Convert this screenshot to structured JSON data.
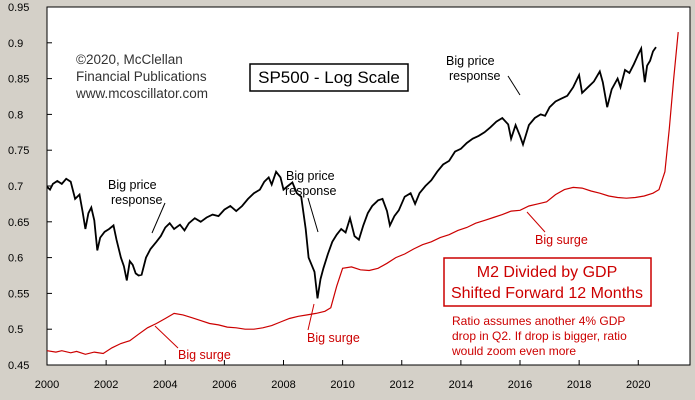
{
  "chart_data": {
    "type": "line",
    "title": "SP500 - Log Scale",
    "copyright": [
      "©2020, McClellan",
      "Financial Publications",
      "www.mcoscillator.com"
    ],
    "xlim": [
      2000,
      2021.75
    ],
    "ylim": [
      0.45,
      0.95
    ],
    "x_ticks": [
      2000,
      2002,
      2004,
      2006,
      2008,
      2010,
      2012,
      2014,
      2016,
      2018,
      2020
    ],
    "y_ticks": [
      "0.45",
      "0.5",
      "0.55",
      "0.6",
      "0.65",
      "0.7",
      "0.75",
      "0.8",
      "0.85",
      "0.9",
      "0.95"
    ],
    "grid": false,
    "series": [
      {
        "name": "SP500",
        "color": "#000000",
        "points": [
          [
            2000.0,
            0.699
          ],
          [
            2000.1,
            0.695
          ],
          [
            2000.2,
            0.703
          ],
          [
            2000.35,
            0.707
          ],
          [
            2000.5,
            0.703
          ],
          [
            2000.65,
            0.71
          ],
          [
            2000.8,
            0.706
          ],
          [
            2000.95,
            0.682
          ],
          [
            2001.1,
            0.688
          ],
          [
            2001.2,
            0.665
          ],
          [
            2001.3,
            0.64
          ],
          [
            2001.4,
            0.662
          ],
          [
            2001.5,
            0.67
          ],
          [
            2001.6,
            0.652
          ],
          [
            2001.7,
            0.61
          ],
          [
            2001.8,
            0.628
          ],
          [
            2001.95,
            0.636
          ],
          [
            2002.1,
            0.64
          ],
          [
            2002.25,
            0.645
          ],
          [
            2002.35,
            0.625
          ],
          [
            2002.5,
            0.6
          ],
          [
            2002.6,
            0.588
          ],
          [
            2002.7,
            0.568
          ],
          [
            2002.8,
            0.595
          ],
          [
            2002.9,
            0.59
          ],
          [
            2003.0,
            0.578
          ],
          [
            2003.1,
            0.575
          ],
          [
            2003.2,
            0.576
          ],
          [
            2003.35,
            0.6
          ],
          [
            2003.5,
            0.612
          ],
          [
            2003.7,
            0.622
          ],
          [
            2003.85,
            0.63
          ],
          [
            2004.0,
            0.642
          ],
          [
            2004.15,
            0.648
          ],
          [
            2004.3,
            0.64
          ],
          [
            2004.5,
            0.646
          ],
          [
            2004.65,
            0.638
          ],
          [
            2004.8,
            0.648
          ],
          [
            2005.0,
            0.655
          ],
          [
            2005.2,
            0.65
          ],
          [
            2005.4,
            0.656
          ],
          [
            2005.6,
            0.66
          ],
          [
            2005.8,
            0.658
          ],
          [
            2006.0,
            0.667
          ],
          [
            2006.2,
            0.672
          ],
          [
            2006.4,
            0.665
          ],
          [
            2006.6,
            0.672
          ],
          [
            2006.8,
            0.682
          ],
          [
            2007.0,
            0.69
          ],
          [
            2007.2,
            0.695
          ],
          [
            2007.35,
            0.706
          ],
          [
            2007.5,
            0.712
          ],
          [
            2007.6,
            0.702
          ],
          [
            2007.75,
            0.72
          ],
          [
            2007.9,
            0.712
          ],
          [
            2008.0,
            0.695
          ],
          [
            2008.15,
            0.7
          ],
          [
            2008.3,
            0.705
          ],
          [
            2008.45,
            0.69
          ],
          [
            2008.6,
            0.685
          ],
          [
            2008.75,
            0.64
          ],
          [
            2008.85,
            0.6
          ],
          [
            2008.95,
            0.59
          ],
          [
            2009.05,
            0.58
          ],
          [
            2009.15,
            0.543
          ],
          [
            2009.25,
            0.57
          ],
          [
            2009.35,
            0.585
          ],
          [
            2009.5,
            0.605
          ],
          [
            2009.65,
            0.622
          ],
          [
            2009.8,
            0.632
          ],
          [
            2009.95,
            0.64
          ],
          [
            2010.1,
            0.635
          ],
          [
            2010.25,
            0.655
          ],
          [
            2010.4,
            0.63
          ],
          [
            2010.55,
            0.625
          ],
          [
            2010.7,
            0.645
          ],
          [
            2010.85,
            0.662
          ],
          [
            2011.0,
            0.672
          ],
          [
            2011.2,
            0.68
          ],
          [
            2011.35,
            0.682
          ],
          [
            2011.5,
            0.665
          ],
          [
            2011.6,
            0.645
          ],
          [
            2011.75,
            0.658
          ],
          [
            2011.9,
            0.666
          ],
          [
            2012.1,
            0.685
          ],
          [
            2012.3,
            0.69
          ],
          [
            2012.45,
            0.675
          ],
          [
            2012.6,
            0.69
          ],
          [
            2012.8,
            0.7
          ],
          [
            2013.0,
            0.708
          ],
          [
            2013.2,
            0.72
          ],
          [
            2013.4,
            0.73
          ],
          [
            2013.6,
            0.735
          ],
          [
            2013.8,
            0.748
          ],
          [
            2014.0,
            0.752
          ],
          [
            2014.2,
            0.76
          ],
          [
            2014.4,
            0.766
          ],
          [
            2014.6,
            0.77
          ],
          [
            2014.8,
            0.775
          ],
          [
            2015.0,
            0.782
          ],
          [
            2015.2,
            0.79
          ],
          [
            2015.4,
            0.795
          ],
          [
            2015.6,
            0.786
          ],
          [
            2015.7,
            0.766
          ],
          [
            2015.85,
            0.785
          ],
          [
            2016.0,
            0.77
          ],
          [
            2016.1,
            0.758
          ],
          [
            2016.3,
            0.785
          ],
          [
            2016.5,
            0.795
          ],
          [
            2016.7,
            0.8
          ],
          [
            2016.85,
            0.798
          ],
          [
            2017.0,
            0.81
          ],
          [
            2017.2,
            0.818
          ],
          [
            2017.4,
            0.822
          ],
          [
            2017.6,
            0.826
          ],
          [
            2017.8,
            0.838
          ],
          [
            2018.0,
            0.855
          ],
          [
            2018.1,
            0.83
          ],
          [
            2018.3,
            0.838
          ],
          [
            2018.5,
            0.846
          ],
          [
            2018.7,
            0.86
          ],
          [
            2018.8,
            0.845
          ],
          [
            2018.95,
            0.81
          ],
          [
            2019.1,
            0.835
          ],
          [
            2019.3,
            0.85
          ],
          [
            2019.4,
            0.838
          ],
          [
            2019.55,
            0.862
          ],
          [
            2019.7,
            0.858
          ],
          [
            2019.85,
            0.87
          ],
          [
            2020.0,
            0.884
          ],
          [
            2020.1,
            0.892
          ],
          [
            2020.15,
            0.87
          ],
          [
            2020.22,
            0.845
          ],
          [
            2020.3,
            0.868
          ],
          [
            2020.4,
            0.875
          ],
          [
            2020.5,
            0.888
          ],
          [
            2020.6,
            0.894
          ]
        ]
      },
      {
        "name": "M2 Divided by GDP Shifted Forward 12 Months",
        "color": "#cc0000",
        "points": [
          [
            2000.0,
            0.47
          ],
          [
            2000.3,
            0.468
          ],
          [
            2000.5,
            0.47
          ],
          [
            2000.8,
            0.467
          ],
          [
            2001.0,
            0.469
          ],
          [
            2001.3,
            0.465
          ],
          [
            2001.6,
            0.468
          ],
          [
            2001.9,
            0.466
          ],
          [
            2002.2,
            0.474
          ],
          [
            2002.5,
            0.48
          ],
          [
            2002.8,
            0.484
          ],
          [
            2003.1,
            0.493
          ],
          [
            2003.4,
            0.502
          ],
          [
            2003.7,
            0.508
          ],
          [
            2004.0,
            0.515
          ],
          [
            2004.3,
            0.522
          ],
          [
            2004.6,
            0.52
          ],
          [
            2004.9,
            0.516
          ],
          [
            2005.2,
            0.512
          ],
          [
            2005.5,
            0.508
          ],
          [
            2005.8,
            0.506
          ],
          [
            2006.1,
            0.503
          ],
          [
            2006.4,
            0.502
          ],
          [
            2006.7,
            0.5
          ],
          [
            2007.0,
            0.5
          ],
          [
            2007.3,
            0.502
          ],
          [
            2007.6,
            0.505
          ],
          [
            2007.9,
            0.51
          ],
          [
            2008.2,
            0.515
          ],
          [
            2008.5,
            0.518
          ],
          [
            2008.8,
            0.52
          ],
          [
            2009.1,
            0.522
          ],
          [
            2009.4,
            0.525
          ],
          [
            2009.6,
            0.53
          ],
          [
            2009.8,
            0.56
          ],
          [
            2010.0,
            0.585
          ],
          [
            2010.3,
            0.587
          ],
          [
            2010.6,
            0.583
          ],
          [
            2010.9,
            0.582
          ],
          [
            2011.2,
            0.585
          ],
          [
            2011.5,
            0.592
          ],
          [
            2011.8,
            0.6
          ],
          [
            2012.1,
            0.605
          ],
          [
            2012.4,
            0.612
          ],
          [
            2012.7,
            0.618
          ],
          [
            2013.0,
            0.622
          ],
          [
            2013.3,
            0.628
          ],
          [
            2013.6,
            0.632
          ],
          [
            2013.9,
            0.638
          ],
          [
            2014.2,
            0.642
          ],
          [
            2014.5,
            0.648
          ],
          [
            2014.8,
            0.652
          ],
          [
            2015.1,
            0.656
          ],
          [
            2015.4,
            0.66
          ],
          [
            2015.7,
            0.665
          ],
          [
            2016.0,
            0.666
          ],
          [
            2016.3,
            0.672
          ],
          [
            2016.6,
            0.675
          ],
          [
            2016.9,
            0.678
          ],
          [
            2017.2,
            0.688
          ],
          [
            2017.5,
            0.695
          ],
          [
            2017.8,
            0.698
          ],
          [
            2018.1,
            0.697
          ],
          [
            2018.4,
            0.693
          ],
          [
            2018.7,
            0.69
          ],
          [
            2019.0,
            0.686
          ],
          [
            2019.3,
            0.684
          ],
          [
            2019.6,
            0.683
          ],
          [
            2019.9,
            0.684
          ],
          [
            2020.2,
            0.686
          ],
          [
            2020.5,
            0.69
          ],
          [
            2020.7,
            0.695
          ],
          [
            2020.9,
            0.72
          ],
          [
            2021.05,
            0.78
          ],
          [
            2021.2,
            0.85
          ],
          [
            2021.35,
            0.915
          ]
        ]
      }
    ],
    "annotations": [
      {
        "lines": [
          "Big price",
          "response"
        ],
        "color": "black"
      },
      {
        "lines": [
          "Big price",
          "response"
        ],
        "color": "black"
      },
      {
        "lines": [
          "Big price",
          "response"
        ],
        "color": "black"
      },
      {
        "lines": [
          "Big surge"
        ],
        "color": "red"
      },
      {
        "lines": [
          "Big surge"
        ],
        "color": "red"
      },
      {
        "lines": [
          "Big surge"
        ],
        "color": "red"
      }
    ],
    "m2_label": [
      "M2 Divided by GDP",
      "Shifted Forward 12 Months"
    ],
    "ratio_note": [
      "Ratio assumes another 4% GDP",
      "drop in Q2. If drop is bigger, ratio",
      "would zoom even more"
    ]
  }
}
